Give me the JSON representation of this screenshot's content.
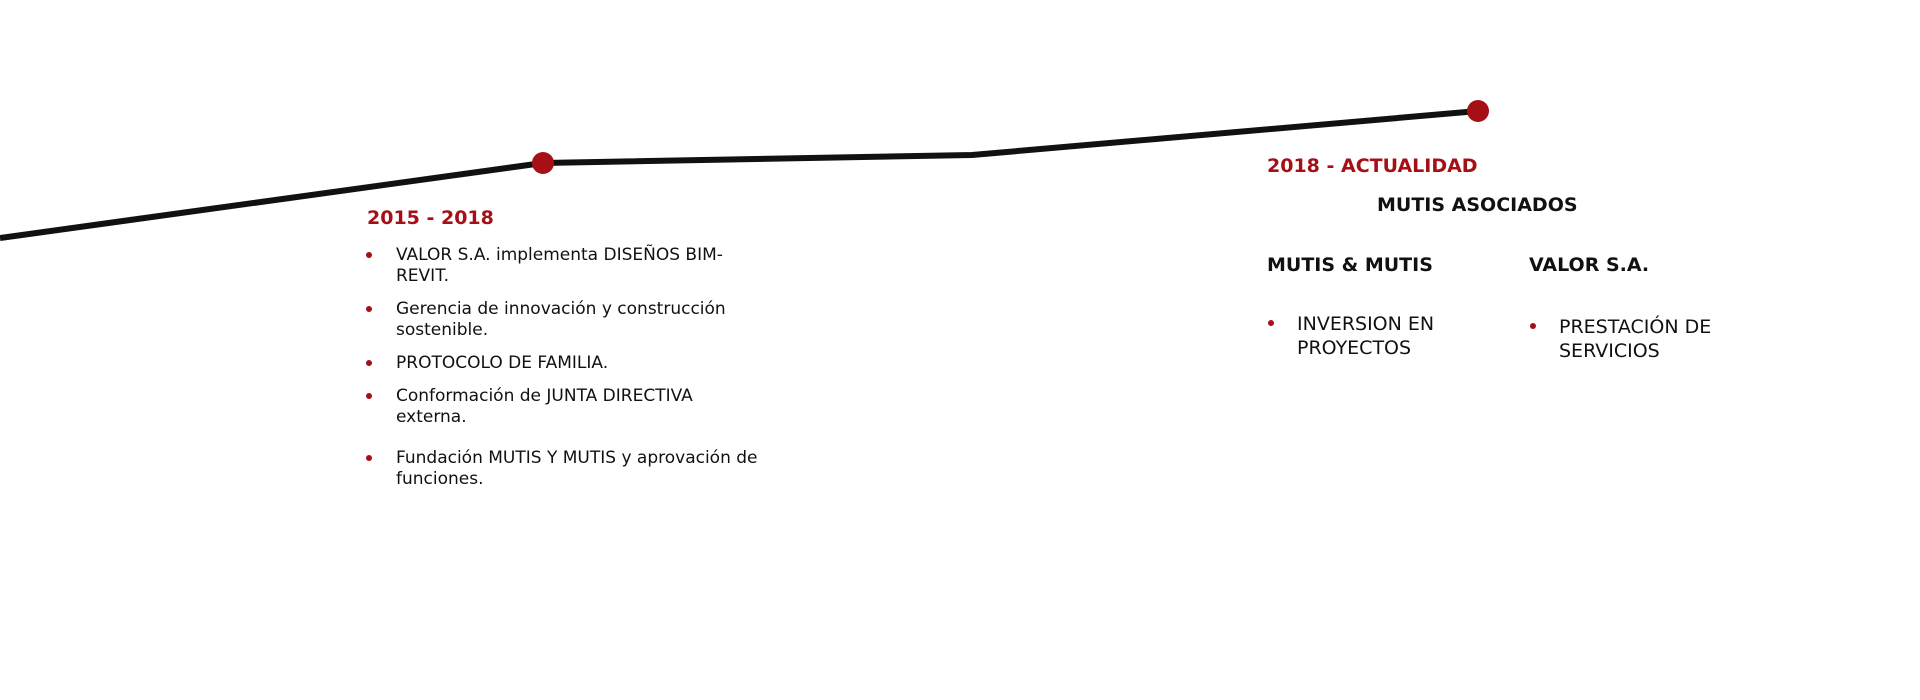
{
  "colors": {
    "accent": "#a50f15",
    "line": "#111111"
  },
  "period_1": {
    "title": "2015 - 2018",
    "items": [
      "VALOR S.A. implementa DISEÑOS BIM-REVIT.",
      "Gerencia de innovación y construcción sostenible.",
      "PROTOCOLO DE FAMILIA.",
      "Conformación de JUNTA DIRECTIVA externa.",
      "Fundación MUTIS Y MUTIS y aprovación de funciones."
    ]
  },
  "period_2": {
    "title": "2018 - ACTUALIDAD",
    "subtitle": "MUTIS ASOCIADOS",
    "columns": [
      {
        "heading": "MUTIS & MUTIS",
        "items": [
          "INVERSION EN PROYECTOS"
        ]
      },
      {
        "heading": "VALOR S.A.",
        "items": [
          "PRESTACIÓN DE SERVICIOS"
        ]
      }
    ]
  }
}
